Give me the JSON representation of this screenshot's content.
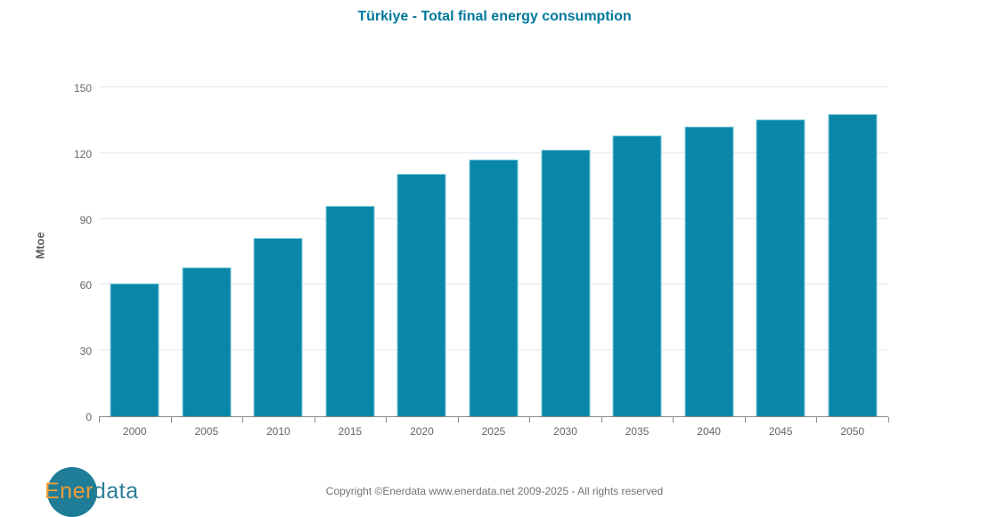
{
  "title": "Türkiye - Total final energy consumption",
  "chart_data": {
    "type": "bar",
    "title": "Türkiye - Total final energy consumption",
    "categories": [
      "2000",
      "2005",
      "2010",
      "2015",
      "2020",
      "2025",
      "2030",
      "2035",
      "2040",
      "2045",
      "2050"
    ],
    "values": [
      60.5,
      68,
      81.5,
      96,
      110.5,
      117,
      121.5,
      128,
      132,
      135.5,
      138
    ],
    "xlabel": "",
    "ylabel": "Mtoe",
    "ylim": [
      0,
      150
    ],
    "yticks": [
      0,
      30,
      60,
      90,
      120,
      150
    ],
    "grid": true,
    "legend": false,
    "bar_color": "#0a87a8",
    "bar_border_color": "#7ec8d8"
  },
  "colors": {
    "title": "#00799c",
    "axis_text": "#666666",
    "gridline": "#e6e6ee",
    "axis_line": "#8a8a8a",
    "bar": "#0a87a8"
  },
  "footer": {
    "logo": {
      "text_primary": "Ener",
      "text_secondary": "data",
      "circle_color": "#1f7d97",
      "primary_color": "#f09d3a",
      "secondary_color": "#2c7f98"
    },
    "copyright": "Copyright ©Enerdata www.enerdata.net 2009-2025 - All rights reserved"
  }
}
